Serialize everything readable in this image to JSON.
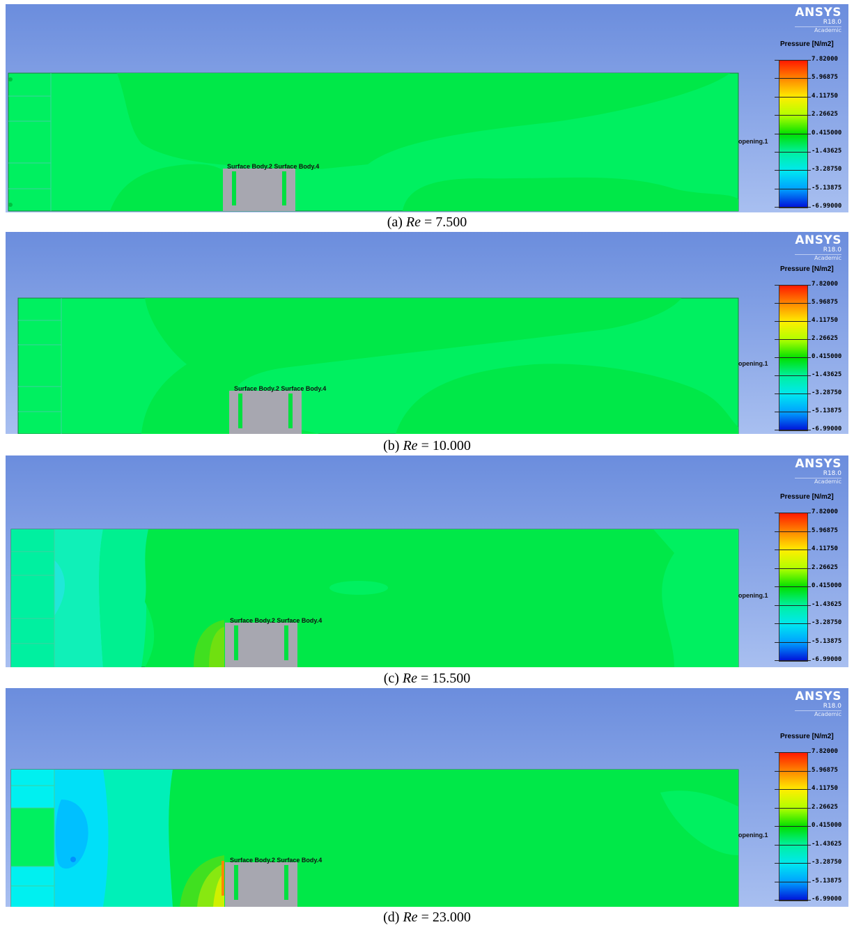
{
  "brand": {
    "name": "ANSYS",
    "version": "R18.0",
    "edition": "Academic"
  },
  "legend": {
    "title": "Pressure [N/m2]",
    "ticks": [
      "7.82000",
      "5.96875",
      "4.11750",
      "2.26625",
      "0.415000",
      "-1.43625",
      "-3.28750",
      "-5.13875",
      "-6.99000"
    ]
  },
  "labels": {
    "opening": "opening.1",
    "surface": "Surface Body.2 Surface Body.4"
  },
  "panels": [
    {
      "caption_prefix": "(a)",
      "caption_var": "Re",
      "caption_rest": "= 7.500",
      "legend_title": "Pressure [N/m2]",
      "ticks": [
        "7.82000",
        "5.96875",
        "4.11750",
        "2.26625",
        "0.415000",
        "-1.43625",
        "-3.28750",
        "-5.13875",
        "-6.99000"
      ]
    },
    {
      "caption_prefix": "(b)",
      "caption_var": "Re",
      "caption_rest": "= 10.000",
      "legend_title": "Pressure [N/m2]",
      "ticks": [
        "7.82000",
        "5.96875",
        "4.11750",
        "2.26625",
        "0.415000",
        "-1.43625",
        "-3.28750",
        "-5.13875",
        "-6.99000"
      ]
    },
    {
      "caption_prefix": "(c)",
      "caption_var": "Re",
      "caption_rest": "= 15.500",
      "legend_title": "Pressure [N/m2]",
      "ticks": [
        "7.82000",
        "5.96875",
        "4.11750",
        "2.26625",
        "0.415000",
        "-1.43625",
        "-3.28750",
        "-5.13875",
        "-6.99000"
      ]
    },
    {
      "caption_prefix": "(d)",
      "caption_var": "Re",
      "caption_rest": "= 23.000",
      "legend_title": "Pressure [N/m2]",
      "ticks": [
        "7.82000",
        "5.96875",
        "4.11750",
        "2.26625",
        "0.415000",
        "-1.43625",
        "-3.28750",
        "-5.13875",
        "-6.99000"
      ]
    }
  ]
}
